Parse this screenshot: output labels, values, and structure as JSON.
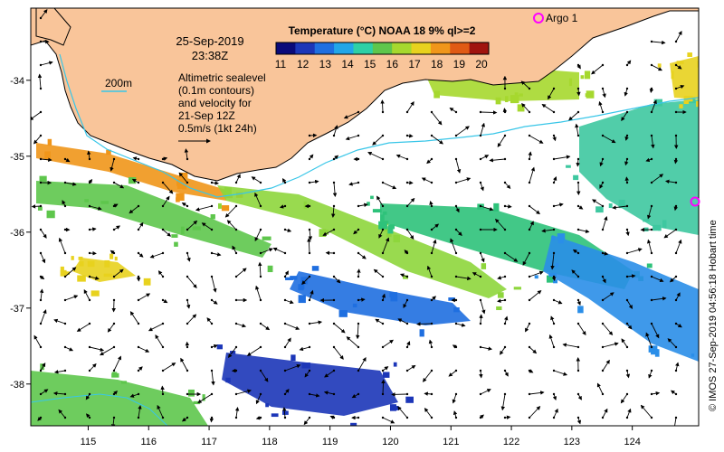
{
  "map": {
    "date": "25-Sep-2019",
    "time": "23:38Z",
    "contour_label": "200m",
    "info_lines": [
      "Altimetric sealevel",
      "(0.1m contours)",
      "and velocity for",
      "21-Sep 12Z",
      "0.5m/s (1kt 24h)"
    ],
    "credit": "© IMOS 27-Sep-2019 04:56:18 Hobart time",
    "float_label": "Argo 1"
  },
  "colorbar": {
    "title": "Temperature (°C) NOAA 18 9% ql>=2",
    "ticks": [
      "11",
      "12",
      "13",
      "14",
      "15",
      "16",
      "17",
      "18",
      "19",
      "20"
    ],
    "colors": [
      "#0a0a7a",
      "#1c36b8",
      "#1f6fe0",
      "#22a6e8",
      "#2ed0a6",
      "#5ec64c",
      "#a6d82e",
      "#e8d21e",
      "#f0961a",
      "#e05a14",
      "#a0140e"
    ]
  },
  "axes": {
    "x_ticks": [
      "115",
      "116",
      "117",
      "118",
      "119",
      "120",
      "121",
      "122",
      "123",
      "124"
    ],
    "y_ticks": [
      "-34",
      "-35",
      "-36",
      "-37",
      "-38"
    ]
  },
  "colors": {
    "land": "#f9c59a",
    "coast": "#000000",
    "contour": "#38c6e8",
    "arrow": "#000000",
    "argo": "#ff00ff"
  }
}
